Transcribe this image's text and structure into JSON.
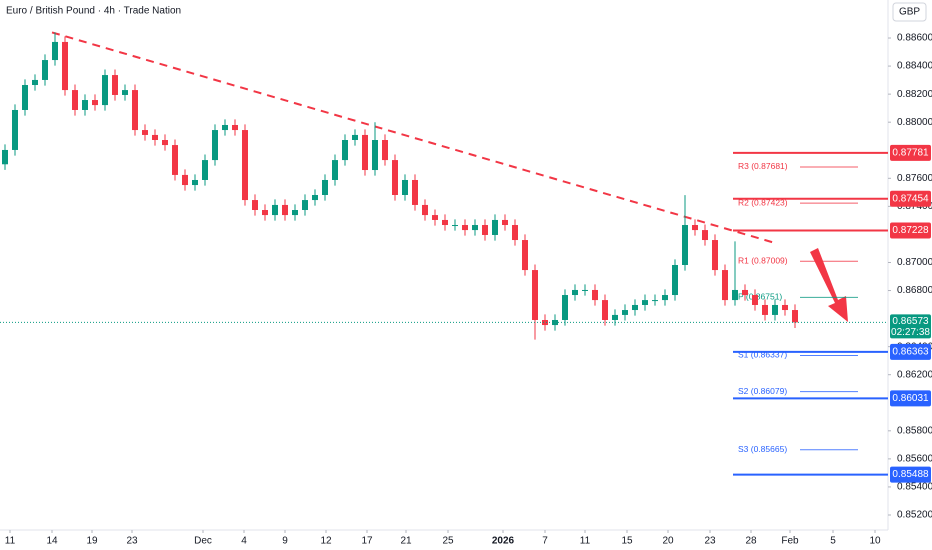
{
  "chart_data": {
    "type": "candlestick",
    "title": "Euro / British Pound · 4h · Trade Nation",
    "currency": "GBP",
    "countdown": "02:27:38",
    "up_color": "#089981",
    "down_color": "#f23645",
    "xlim": [
      -0.5,
      88
    ],
    "ylim": [
      0.85093,
      0.88871
    ],
    "yticks": [
      {
        "value": 0.886,
        "label": "0.88600"
      },
      {
        "value": 0.884,
        "label": "0.88400"
      },
      {
        "value": 0.882,
        "label": "0.88200"
      },
      {
        "value": 0.88,
        "label": "0.88000"
      },
      {
        "value": 0.876,
        "label": "0.87600"
      },
      {
        "value": 0.874,
        "label": "0.87400"
      },
      {
        "value": 0.87,
        "label": "0.87000"
      },
      {
        "value": 0.868,
        "label": "0.86800"
      },
      {
        "value": 0.864,
        "label": "0.86400"
      },
      {
        "value": 0.862,
        "label": "0.86200"
      },
      {
        "value": 0.858,
        "label": "0.85800"
      },
      {
        "value": 0.856,
        "label": "0.85600"
      },
      {
        "value": 0.854,
        "label": "0.85400"
      },
      {
        "value": 0.852,
        "label": "0.85200"
      }
    ],
    "xticks": [
      {
        "value": 0.5,
        "label": "11"
      },
      {
        "value": 4.7,
        "label": "14"
      },
      {
        "value": 8.7,
        "label": "19"
      },
      {
        "value": 12.7,
        "label": "23"
      },
      {
        "value": 19.8,
        "label": "Dec"
      },
      {
        "value": 23.9,
        "label": "4"
      },
      {
        "value": 28,
        "label": "9"
      },
      {
        "value": 32.1,
        "label": "12"
      },
      {
        "value": 36.2,
        "label": "17"
      },
      {
        "value": 40.1,
        "label": "21"
      },
      {
        "value": 44.3,
        "label": "25"
      },
      {
        "value": 49.8,
        "label": "2026"
      },
      {
        "value": 54,
        "label": "7"
      },
      {
        "value": 58,
        "label": "11"
      },
      {
        "value": 62.2,
        "label": "15"
      },
      {
        "value": 66.3,
        "label": "20"
      },
      {
        "value": 70.5,
        "label": "23"
      },
      {
        "value": 74.6,
        "label": "28"
      },
      {
        "value": 78.5,
        "label": "Feb"
      },
      {
        "value": 82.8,
        "label": "5"
      },
      {
        "value": 87,
        "label": "10"
      }
    ],
    "x": [
      0,
      1,
      2,
      3,
      4,
      5,
      6,
      7,
      8,
      9,
      10,
      11,
      12,
      13,
      14,
      15,
      16,
      17,
      18,
      19,
      20,
      21,
      22,
      23,
      24,
      25,
      26,
      27,
      28,
      29,
      30,
      31,
      32,
      33,
      34,
      35,
      36,
      37,
      38,
      39,
      40,
      41,
      42,
      43,
      44,
      45,
      46,
      47,
      48,
      49,
      50,
      51,
      52,
      53,
      54,
      55,
      56,
      57,
      58,
      59,
      60,
      61,
      62,
      63,
      64,
      65,
      66,
      67,
      68,
      69,
      70,
      71,
      72,
      73,
      74,
      75,
      76,
      77,
      78,
      79
    ],
    "candles": [
      [
        0.877,
        0.87842,
        0.8766,
        0.87802
      ],
      [
        0.87802,
        0.88127,
        0.87762,
        0.88087
      ],
      [
        0.88087,
        0.88305,
        0.88047,
        0.88265
      ],
      [
        0.88265,
        0.88341,
        0.88225,
        0.88301
      ],
      [
        0.88301,
        0.88483,
        0.88261,
        0.88443
      ],
      [
        0.88443,
        0.8864,
        0.88403,
        0.88572
      ],
      [
        0.88572,
        0.88612,
        0.88189,
        0.88229
      ],
      [
        0.88229,
        0.88269,
        0.88047,
        0.88087
      ],
      [
        0.88087,
        0.88198,
        0.88047,
        0.88158
      ],
      [
        0.88158,
        0.88198,
        0.88082,
        0.88122
      ],
      [
        0.88122,
        0.88376,
        0.88082,
        0.88336
      ],
      [
        0.88336,
        0.88376,
        0.88154,
        0.88194
      ],
      [
        0.88194,
        0.88269,
        0.88154,
        0.88229
      ],
      [
        0.88229,
        0.88269,
        0.87904,
        0.87944
      ],
      [
        0.87944,
        0.87984,
        0.87869,
        0.87909
      ],
      [
        0.87909,
        0.87949,
        0.87833,
        0.87873
      ],
      [
        0.87873,
        0.87913,
        0.87797,
        0.87837
      ],
      [
        0.87837,
        0.87877,
        0.87584,
        0.87624
      ],
      [
        0.87624,
        0.87664,
        0.87512,
        0.87552
      ],
      [
        0.87552,
        0.87628,
        0.87512,
        0.87588
      ],
      [
        0.87588,
        0.8777,
        0.87548,
        0.8773
      ],
      [
        0.8773,
        0.87984,
        0.8769,
        0.87944
      ],
      [
        0.87944,
        0.8802,
        0.87904,
        0.8798
      ],
      [
        0.8798,
        0.8802,
        0.87904,
        0.87944
      ],
      [
        0.87944,
        0.87984,
        0.87405,
        0.87445
      ],
      [
        0.87445,
        0.87485,
        0.87334,
        0.87374
      ],
      [
        0.87374,
        0.87414,
        0.87298,
        0.87338
      ],
      [
        0.87338,
        0.8745,
        0.87298,
        0.8741
      ],
      [
        0.8741,
        0.8745,
        0.87298,
        0.87338
      ],
      [
        0.87338,
        0.87414,
        0.87298,
        0.87374
      ],
      [
        0.87374,
        0.87485,
        0.87334,
        0.87445
      ],
      [
        0.87445,
        0.87521,
        0.87405,
        0.87481
      ],
      [
        0.87481,
        0.87628,
        0.87441,
        0.87588
      ],
      [
        0.87588,
        0.8777,
        0.87548,
        0.8773
      ],
      [
        0.8773,
        0.87913,
        0.8769,
        0.87873
      ],
      [
        0.87873,
        0.87949,
        0.87833,
        0.87909
      ],
      [
        0.87909,
        0.87949,
        0.87619,
        0.87659
      ],
      [
        0.87659,
        0.88,
        0.87619,
        0.87873
      ],
      [
        0.87873,
        0.87913,
        0.8769,
        0.8773
      ],
      [
        0.8773,
        0.8777,
        0.87441,
        0.87481
      ],
      [
        0.87481,
        0.87628,
        0.87441,
        0.87588
      ],
      [
        0.87588,
        0.87628,
        0.8737,
        0.8741
      ],
      [
        0.8741,
        0.8745,
        0.87298,
        0.87338
      ],
      [
        0.87338,
        0.87378,
        0.87263,
        0.87303
      ],
      [
        0.87303,
        0.87343,
        0.87227,
        0.87267
      ],
      [
        0.87267,
        0.87307,
        0.87227,
        0.87267
      ],
      [
        0.87267,
        0.87307,
        0.87191,
        0.87231
      ],
      [
        0.87231,
        0.87307,
        0.87191,
        0.87267
      ],
      [
        0.87267,
        0.87307,
        0.87156,
        0.87196
      ],
      [
        0.87196,
        0.87343,
        0.87156,
        0.87303
      ],
      [
        0.87303,
        0.87343,
        0.87227,
        0.87267
      ],
      [
        0.87267,
        0.87307,
        0.8712,
        0.8716
      ],
      [
        0.8716,
        0.872,
        0.86906,
        0.86946
      ],
      [
        0.86946,
        0.86986,
        0.8645,
        0.8659
      ],
      [
        0.8659,
        0.8663,
        0.86514,
        0.86554
      ],
      [
        0.86554,
        0.8663,
        0.86514,
        0.8659
      ],
      [
        0.8659,
        0.86808,
        0.8655,
        0.86768
      ],
      [
        0.86768,
        0.86844,
        0.86728,
        0.86804
      ],
      [
        0.86804,
        0.86844,
        0.86764,
        0.86804
      ],
      [
        0.86804,
        0.86844,
        0.86692,
        0.86732
      ],
      [
        0.86732,
        0.86772,
        0.8655,
        0.8659
      ],
      [
        0.8659,
        0.86666,
        0.8655,
        0.86626
      ],
      [
        0.86626,
        0.86701,
        0.86586,
        0.86661
      ],
      [
        0.86661,
        0.86737,
        0.86621,
        0.86697
      ],
      [
        0.86697,
        0.86772,
        0.86657,
        0.86732
      ],
      [
        0.86732,
        0.86772,
        0.86692,
        0.86732
      ],
      [
        0.86732,
        0.86808,
        0.86692,
        0.86768
      ],
      [
        0.86768,
        0.87022,
        0.86728,
        0.86982
      ],
      [
        0.86982,
        0.8748,
        0.86942,
        0.87267
      ],
      [
        0.87267,
        0.87307,
        0.87191,
        0.87231
      ],
      [
        0.87231,
        0.87271,
        0.8712,
        0.8716
      ],
      [
        0.8716,
        0.872,
        0.86906,
        0.86946
      ],
      [
        0.86946,
        0.86986,
        0.86692,
        0.86732
      ],
      [
        0.86732,
        0.8715,
        0.86692,
        0.86804
      ],
      [
        0.86804,
        0.86844,
        0.86728,
        0.86768
      ],
      [
        0.86768,
        0.86808,
        0.86657,
        0.86697
      ],
      [
        0.86697,
        0.86737,
        0.86586,
        0.86626
      ],
      [
        0.86626,
        0.86737,
        0.86586,
        0.86697
      ],
      [
        0.86697,
        0.86737,
        0.86621,
        0.86661
      ],
      [
        0.86661,
        0.86701,
        0.86533,
        0.86573
      ]
    ],
    "trendline": {
      "x": [
        4.7,
        77
      ],
      "y": [
        0.8864,
        0.87139
      ],
      "color": "#f23645"
    },
    "levels": [
      {
        "value": 0.87781,
        "color": "#f23645"
      },
      {
        "value": 0.87454,
        "color": "#f23645"
      },
      {
        "value": 0.87228,
        "color": "#f23645"
      },
      {
        "value": 0.86363,
        "color": "#2962ff"
      },
      {
        "value": 0.86031,
        "color": "#2962ff"
      },
      {
        "value": 0.85488,
        "color": "#2962ff"
      }
    ],
    "pivots": [
      {
        "value": 0.87681,
        "label": "R3 (0.87681)",
        "color": "#f23645"
      },
      {
        "value": 0.87423,
        "label": "R2 (0.87423)",
        "color": "#f23645"
      },
      {
        "value": 0.87009,
        "label": "R1 (0.87009)",
        "color": "#f23645"
      },
      {
        "value": 0.86751,
        "label": "P (0.86751)",
        "color": "#089981"
      },
      {
        "value": 0.86337,
        "label": "S1 (0.86337)",
        "color": "#2962ff"
      },
      {
        "value": 0.86079,
        "label": "S2 (0.86079)",
        "color": "#2962ff"
      },
      {
        "value": 0.85665,
        "label": "S3 (0.85665)",
        "color": "#2962ff"
      }
    ]
  }
}
